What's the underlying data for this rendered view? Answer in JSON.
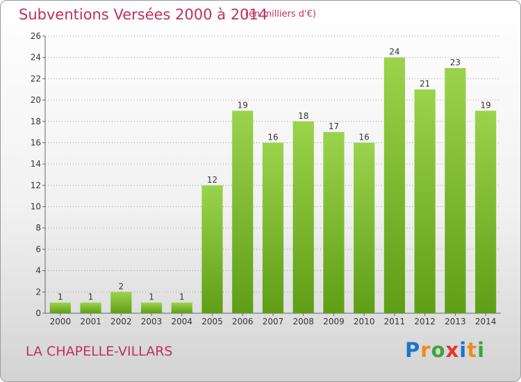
{
  "header": {
    "title": "Subventions Versées 2000 à 2014",
    "unit": "(en milliers d'€)"
  },
  "footer": {
    "town": "LA CHAPELLE-VILLARS",
    "logo_letters": [
      "P",
      "r",
      "o",
      "x",
      "i",
      "t",
      "i"
    ],
    "logo_colors": [
      "#1e73c8",
      "#f08a1c",
      "#3aa63a",
      "#e8342c",
      "#1e73c8",
      "#f08a1c",
      "#3aa63a"
    ]
  },
  "colors": {
    "bar_light": "#9bd34c",
    "bar_dark": "#5f9e16",
    "grid": "#9a9a9a",
    "axis_text": "#333333",
    "accent": "#c0305a"
  },
  "chart_data": {
    "type": "bar",
    "categories": [
      "2000",
      "2001",
      "2002",
      "2003",
      "2004",
      "2005",
      "2006",
      "2007",
      "2008",
      "2009",
      "2010",
      "2011",
      "2012",
      "2013",
      "2014"
    ],
    "values": [
      1,
      1,
      2,
      1,
      1,
      12,
      19,
      16,
      18,
      17,
      16,
      24,
      21,
      23,
      19
    ],
    "ylim": [
      0,
      26
    ],
    "yticks": [
      0,
      2,
      4,
      6,
      8,
      10,
      12,
      14,
      16,
      18,
      20,
      22,
      24,
      26
    ],
    "grid": true,
    "title": "Subventions Versées 2000 à 2014",
    "xlabel": "",
    "ylabel": ""
  }
}
